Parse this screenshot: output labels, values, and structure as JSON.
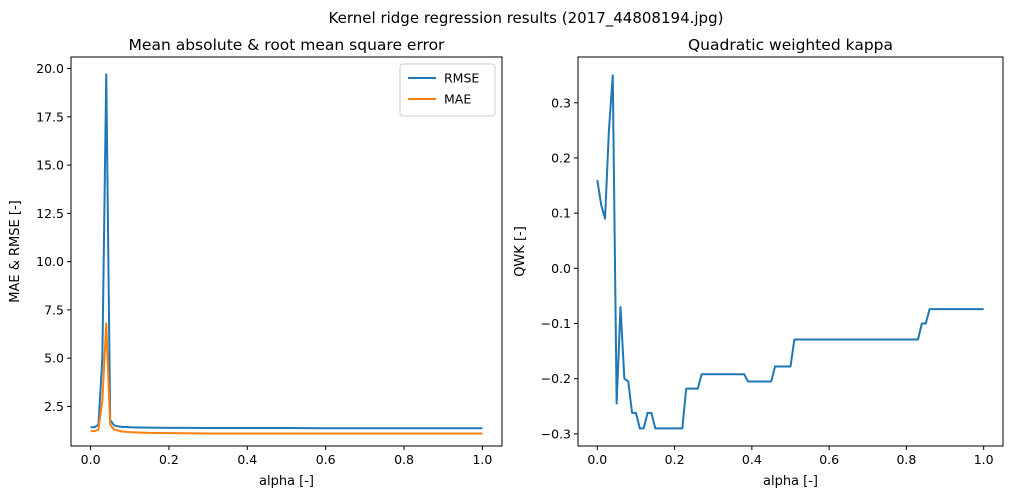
{
  "figure": {
    "title": "Kernel ridge regression results (2017_44808194.jpg)"
  },
  "chart_data": [
    {
      "type": "line",
      "title": "Mean absolute & root mean square error",
      "xlabel": "alpha [-]",
      "ylabel": "MAE & RMSE [-]",
      "xlim": [
        -0.05,
        1.05
      ],
      "ylim": [
        0.45,
        20.6
      ],
      "xticks": [
        0.0,
        0.2,
        0.4,
        0.6,
        0.8,
        1.0
      ],
      "xtick_labels": [
        "0.0",
        "0.2",
        "0.4",
        "0.6",
        "0.8",
        "1.0"
      ],
      "yticks": [
        2.5,
        5.0,
        7.5,
        10.0,
        12.5,
        15.0,
        17.5,
        20.0
      ],
      "ytick_labels": [
        "2.5",
        "5.0",
        "7.5",
        "10.0",
        "12.5",
        "15.0",
        "17.5",
        "20.0"
      ],
      "grid": false,
      "legend": "top-right",
      "series": [
        {
          "name": "RMSE",
          "color": "#1f77b4",
          "x": [
            0.0,
            0.01,
            0.02,
            0.03,
            0.04,
            0.05,
            0.06,
            0.07,
            0.08,
            0.1,
            0.12,
            0.15,
            0.2,
            0.25,
            0.3,
            0.4,
            0.5,
            0.6,
            0.7,
            0.8,
            0.9,
            1.0
          ],
          "y": [
            1.42,
            1.42,
            1.55,
            5.0,
            19.7,
            1.8,
            1.52,
            1.47,
            1.44,
            1.42,
            1.41,
            1.4,
            1.39,
            1.39,
            1.38,
            1.38,
            1.38,
            1.37,
            1.37,
            1.37,
            1.37,
            1.37
          ]
        },
        {
          "name": "MAE",
          "color": "#ff7f0e",
          "x": [
            0.0,
            0.01,
            0.02,
            0.03,
            0.04,
            0.05,
            0.06,
            0.07,
            0.08,
            0.1,
            0.12,
            0.15,
            0.2,
            0.25,
            0.3,
            0.4,
            0.5,
            0.6,
            0.7,
            0.8,
            0.9,
            1.0
          ],
          "y": [
            1.22,
            1.22,
            1.3,
            2.8,
            6.8,
            1.55,
            1.3,
            1.25,
            1.2,
            1.17,
            1.15,
            1.13,
            1.12,
            1.11,
            1.1,
            1.1,
            1.1,
            1.1,
            1.1,
            1.1,
            1.1,
            1.1
          ]
        }
      ]
    },
    {
      "type": "line",
      "title": "Quadratic weighted kappa",
      "xlabel": "alpha [-]",
      "ylabel": "QWK [-]",
      "xlim": [
        -0.05,
        1.05
      ],
      "ylim": [
        -0.322,
        0.383
      ],
      "xticks": [
        0.0,
        0.2,
        0.4,
        0.6,
        0.8,
        1.0
      ],
      "xtick_labels": [
        "0.0",
        "0.2",
        "0.4",
        "0.6",
        "0.8",
        "1.0"
      ],
      "yticks": [
        -0.3,
        -0.2,
        -0.1,
        0.0,
        0.1,
        0.2,
        0.3
      ],
      "ytick_labels": [
        "−0.3",
        "−0.2",
        "−0.1",
        "0.0",
        "0.1",
        "0.2",
        "0.3"
      ],
      "grid": false,
      "series": [
        {
          "color": "#1f77b4",
          "x": [
            0.0,
            0.01,
            0.02,
            0.03,
            0.04,
            0.05,
            0.06,
            0.07,
            0.08,
            0.09,
            0.1,
            0.11,
            0.12,
            0.13,
            0.14,
            0.15,
            0.16,
            0.17,
            0.18,
            0.19,
            0.2,
            0.21,
            0.22,
            0.23,
            0.24,
            0.25,
            0.26,
            0.27,
            0.28,
            0.38,
            0.39,
            0.45,
            0.46,
            0.5,
            0.51,
            0.83,
            0.84,
            0.85,
            0.86,
            1.0
          ],
          "y": [
            0.16,
            0.115,
            0.09,
            0.25,
            0.35,
            -0.245,
            -0.07,
            -0.2,
            -0.205,
            -0.262,
            -0.262,
            -0.29,
            -0.29,
            -0.262,
            -0.262,
            -0.29,
            -0.29,
            -0.29,
            -0.29,
            -0.29,
            -0.29,
            -0.29,
            -0.29,
            -0.218,
            -0.218,
            -0.218,
            -0.218,
            -0.192,
            -0.192,
            -0.192,
            -0.205,
            -0.205,
            -0.178,
            -0.178,
            -0.129,
            -0.129,
            -0.1,
            -0.1,
            -0.074,
            -0.074
          ]
        }
      ]
    }
  ]
}
